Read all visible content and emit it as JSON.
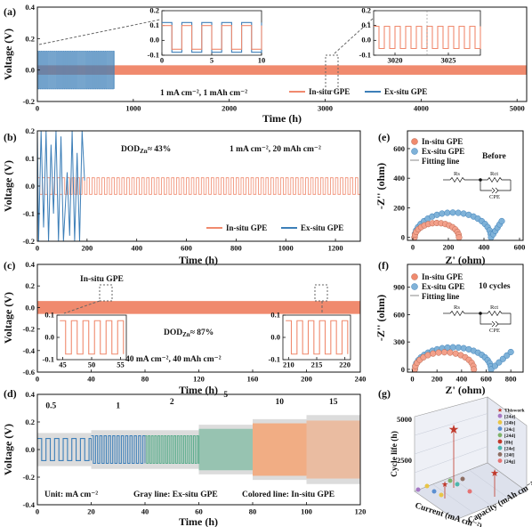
{
  "colors": {
    "insitu": "#F08A6E",
    "exsitu": "#3D7FB8",
    "gray": "#9A9A9A",
    "green": "#5EAE8E",
    "orange": "#F3A77A"
  },
  "chart_data": [
    {
      "panel": "(a)",
      "type": "line",
      "xlabel": "Time (h)",
      "ylabel": "Voltage (V)",
      "xlim": [
        0,
        5100
      ],
      "ylim": [
        -0.2,
        0.4
      ],
      "xticks": [
        "0",
        "1000",
        "2000",
        "3000",
        "4000",
        "5000"
      ],
      "yticks": [
        "-0.2",
        "0.0",
        "0.2",
        "0.4"
      ],
      "annotation": "1 mA cm⁻², 1 mAh cm⁻²",
      "series": [
        {
          "name": "In-situ GPE",
          "x_range": [
            0,
            5100
          ],
          "amplitude": 0.03
        },
        {
          "name": "Ex-situ GPE",
          "x_range": [
            0,
            800
          ],
          "amplitude": 0.12
        }
      ],
      "insets": [
        {
          "xlim": [
            0,
            10
          ],
          "ylim": [
            -0.1,
            0.2
          ],
          "xticks": [
            "0",
            "5",
            "10"
          ],
          "yticks": [
            "-0.1",
            "0.0",
            "0.1",
            "0.2"
          ]
        },
        {
          "xlim": [
            3018,
            3028
          ],
          "ylim": [
            -0.1,
            0.2
          ],
          "xticks": [
            "3020",
            "3025"
          ],
          "yticks": [
            "-0.1",
            "0.0",
            "0.1",
            "0.2"
          ]
        }
      ]
    },
    {
      "panel": "(b)",
      "type": "line",
      "xlabel": "Time (h)",
      "ylabel": "Voltage (V)",
      "xlim": [
        0,
        1300
      ],
      "ylim": [
        -0.2,
        0.2
      ],
      "xticks": [
        "0",
        "200",
        "400",
        "600",
        "800",
        "1000",
        "1200"
      ],
      "yticks": [
        "-0.2",
        "-0.1",
        "0.0",
        "0.1",
        "0.2"
      ],
      "annotations": [
        "DOD",
        "Zn",
        "≈ 43%",
        "1 mA cm⁻², 20 mAh cm⁻²"
      ],
      "series": [
        {
          "name": "In-situ GPE",
          "x_range": [
            0,
            1300
          ],
          "amplitude": 0.03
        },
        {
          "name": "Ex-situ GPE",
          "x_range": [
            0,
            190
          ],
          "amplitude": 0.2
        }
      ]
    },
    {
      "panel": "(c)",
      "type": "line",
      "xlabel": "Time (h)",
      "ylabel": "Voltage (V)",
      "xlim": [
        0,
        240
      ],
      "ylim": [
        -0.6,
        0.4
      ],
      "xticks": [
        "0",
        "40",
        "80",
        "120",
        "160",
        "200",
        "240"
      ],
      "yticks": [
        "-0.6",
        "-0.4",
        "-0.2",
        "0.0",
        "0.2",
        "0.4"
      ],
      "annotations": [
        "In-situ GPE",
        "DOD",
        "Zn",
        "≈ 87%",
        "40 mA cm⁻², 40 mAh cm⁻²"
      ],
      "series": [
        {
          "name": "In-situ GPE",
          "x_range": [
            0,
            240
          ],
          "amplitude": 0.06
        }
      ],
      "insets": [
        {
          "xlim": [
            44,
            56
          ],
          "ylim": [
            -0.1,
            0.1
          ],
          "xticks": [
            "45",
            "50",
            "55"
          ],
          "yticks": [
            "-0.1",
            "0.0",
            "0.1"
          ]
        },
        {
          "xlim": [
            209,
            221
          ],
          "ylim": [
            -0.1,
            0.1
          ],
          "xticks": [
            "210",
            "215",
            "220"
          ],
          "yticks": [
            "-0.1",
            "0.0",
            "0.1"
          ]
        }
      ]
    },
    {
      "panel": "(d)",
      "type": "area",
      "xlabel": "Time (h)",
      "ylabel": "Voltage (V)",
      "xlim": [
        0,
        120
      ],
      "ylim": [
        -0.4,
        0.4
      ],
      "xticks": [
        "0",
        "20",
        "40",
        "60",
        "80",
        "100",
        "120"
      ],
      "yticks": [
        "-0.4",
        "-0.2",
        "0.0",
        "0.2",
        "0.4"
      ],
      "rate_labels": [
        "0.5",
        "1",
        "2",
        "5",
        "10",
        "15"
      ],
      "segments": [
        {
          "rate": 0.5,
          "x": [
            0,
            20
          ],
          "insitu_amp": 0.08,
          "exsitu_amp": 0.12
        },
        {
          "rate": 1,
          "x": [
            20,
            40
          ],
          "insitu_amp": 0.1,
          "exsitu_amp": 0.14
        },
        {
          "rate": 2,
          "x": [
            40,
            60
          ],
          "insitu_amp": 0.1,
          "exsitu_amp": 0.14
        },
        {
          "rate": 5,
          "x": [
            60,
            80
          ],
          "insitu_amp": 0.15,
          "exsitu_amp": 0.18
        },
        {
          "rate": 10,
          "x": [
            80,
            100
          ],
          "insitu_amp": 0.19,
          "exsitu_amp": 0.22
        },
        {
          "rate": 15,
          "x": [
            100,
            120
          ],
          "insitu_amp": 0.21,
          "exsitu_amp": 0.25
        }
      ],
      "annotations": [
        "Unit: mA cm⁻²",
        "Gray line: Ex-situ GPE",
        "Colored line: In-situ GPE"
      ]
    },
    {
      "panel": "(e)",
      "type": "scatter",
      "xlabel": "Z' (ohm)",
      "ylabel": "-Z'' (ohm)",
      "xlim": [
        -30,
        620
      ],
      "ylim": [
        -20,
        720
      ],
      "xticks": [
        "0",
        "200",
        "400",
        "600"
      ],
      "yticks": [
        "0",
        "200",
        "400",
        "600"
      ],
      "annotation": "Before",
      "circuit_labels": [
        "Rs",
        "Rct",
        "CPE"
      ],
      "legend": [
        "In-situ GPE",
        "Ex-situ GPE",
        "Fitting line"
      ],
      "series": [
        {
          "name": "In-situ GPE",
          "semicircle": {
            "start": 10,
            "end": 260
          }
        },
        {
          "name": "Ex-situ GPE",
          "semicircle": {
            "start": 10,
            "end": 440
          },
          "tail_to": [
            500,
            110
          ]
        }
      ]
    },
    {
      "panel": "(f)",
      "type": "scatter",
      "xlabel": "Z' (ohm)",
      "ylabel": "-Z'' (ohm)",
      "xlim": [
        -40,
        900
      ],
      "ylim": [
        -30,
        1150
      ],
      "xticks": [
        "0",
        "200",
        "400",
        "600",
        "800"
      ],
      "yticks": [
        "0",
        "300",
        "600",
        "900"
      ],
      "annotation": "10 cycles",
      "circuit_labels": [
        "Rs",
        "Rct",
        "CPE"
      ],
      "legend": [
        "In-situ GPE",
        "Ex-situ GPE",
        "Fitting line"
      ],
      "series": [
        {
          "name": "In-situ GPE",
          "semicircle": {
            "start": 20,
            "end": 500
          }
        },
        {
          "name": "Ex-situ GPE",
          "semicircle": {
            "start": 20,
            "end": 640
          },
          "tail_to": [
            800,
            190
          ]
        }
      ]
    },
    {
      "panel": "(g)",
      "type": "scatter",
      "xlabel": "Current (mA cm⁻²)",
      "ylabel": "Cycle life (h)",
      "zlabel": "Capacity (mAh cm⁻²)",
      "zticks": [
        "2500",
        "5000"
      ],
      "legend": [
        "Thiswork",
        "[24a]",
        "[24b]",
        "[24c]",
        "[24d]",
        "[8b]",
        "[24e]",
        "[24f]",
        "[24g]"
      ],
      "legend_colors": [
        "#C0392B",
        "#A678C4",
        "#E8C547",
        "#5B8FD1",
        "#7FB36A",
        "#C0392B",
        "#4DB6AC",
        "#8D6E63",
        "#E57373"
      ]
    }
  ]
}
